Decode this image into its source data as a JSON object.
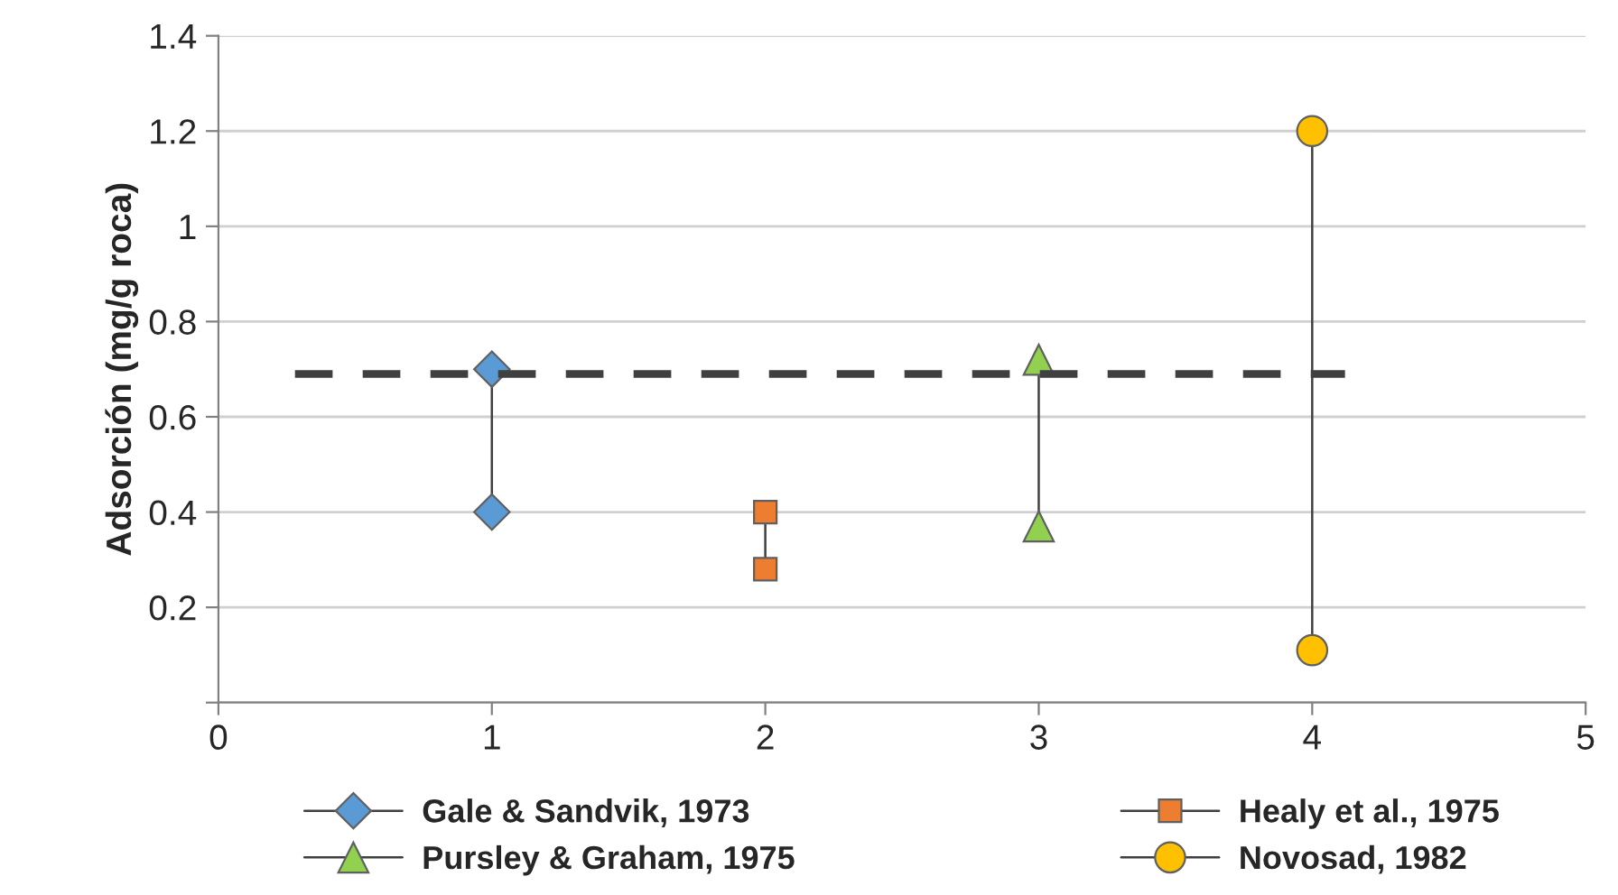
{
  "chart_data": {
    "type": "line",
    "ylabel": "Adsorción (mg/g roca)",
    "xlim": [
      0,
      5
    ],
    "xticks": [
      0,
      1,
      2,
      3,
      4,
      5
    ],
    "ylim": [
      0,
      1.4
    ],
    "yticks": [
      {
        "value": 0,
        "label": null
      },
      0.2,
      0.4,
      0.6,
      0.8,
      1,
      1.2,
      1.4
    ],
    "grid": "y",
    "legend": "bottom",
    "line_style": "solid",
    "series": [
      {
        "name": "Gale & Sandvik, 1973",
        "color": "#5b9bd5",
        "marker": "diamond",
        "x": [
          1,
          1
        ],
        "values": [
          0.7,
          0.4
        ]
      },
      {
        "name": "Healy et al., 1975",
        "color": "#ed7d31",
        "marker": "square",
        "x": [
          2,
          2
        ],
        "values": [
          0.4,
          0.28
        ]
      },
      {
        "name": "Pursley & Graham, 1975",
        "color": "#92d050",
        "marker": "triangle",
        "x": [
          3,
          3
        ],
        "values": [
          0.72,
          0.37
        ]
      },
      {
        "name": "Novosad, 1982",
        "color": "#ffc000",
        "marker": "circle",
        "x": [
          4,
          4
        ],
        "values": [
          1.2,
          0.11
        ]
      },
      {
        "color": "#404040",
        "marker": "none",
        "line_style": "dashed",
        "x": [
          0.28,
          4.12
        ],
        "values": [
          0.69,
          0.69
        ]
      }
    ]
  }
}
